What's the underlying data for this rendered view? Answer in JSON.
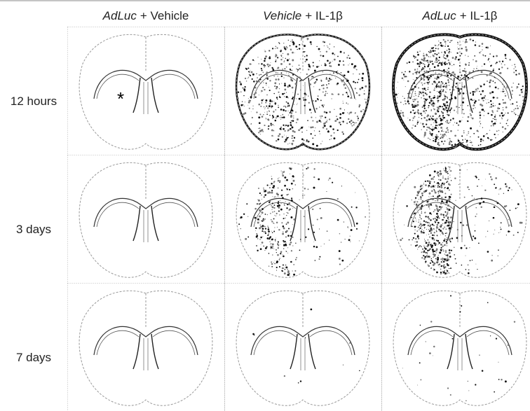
{
  "columns": [
    {
      "italic": "AdLuc",
      "rest": "+ Vehicle"
    },
    {
      "italic": "Vehicle",
      "rest": "+ IL-1β"
    },
    {
      "italic": "AdLuc",
      "rest": "+ IL-1β"
    }
  ],
  "rows": [
    "12 hours",
    "3 days",
    "7 days"
  ],
  "marker": "*"
}
